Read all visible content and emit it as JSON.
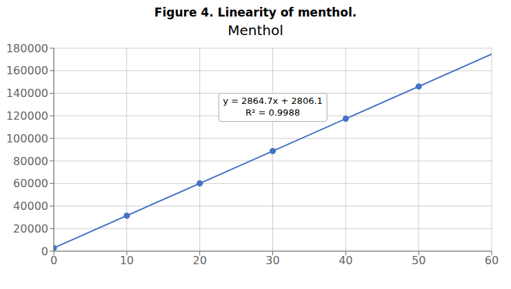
{
  "chart_data": {
    "type": "scatter",
    "title": "Figure 4. Linearity of menthol.",
    "subtitle": "Menthol",
    "series": [
      {
        "type": "scatter",
        "color": "#4472C4",
        "x": [
          0,
          10,
          20,
          30,
          40,
          50
        ],
        "values": [
          2806.1,
          31453.1,
          60100.1,
          88747.1,
          117394.1,
          146041.1
        ]
      },
      {
        "type": "line",
        "color": "#4472C4",
        "x": [
          0,
          60
        ],
        "values": [
          2806.1,
          174688.1
        ]
      }
    ],
    "annotations": [
      "y = 2864.7x + 2806.1",
      "R² = 0.9988"
    ],
    "xlim": [
      0,
      60
    ],
    "xticks": [
      0,
      10,
      20,
      30,
      40,
      50,
      60
    ],
    "ylim": [
      0,
      180000
    ],
    "yticks": [
      0,
      20000,
      40000,
      60000,
      80000,
      100000,
      120000,
      140000,
      160000,
      180000
    ],
    "grid": true
  }
}
